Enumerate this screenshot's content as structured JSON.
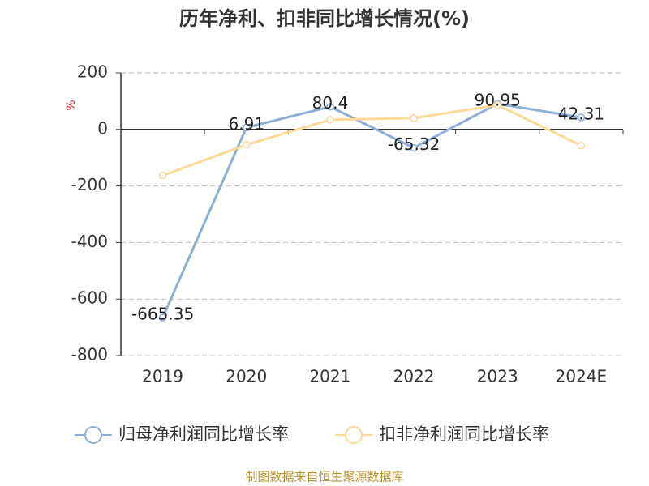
{
  "chart_data": {
    "type": "line",
    "title": "历年净利、扣非同比增长情况(%)",
    "y_label": "%",
    "categories": [
      "2019",
      "2020",
      "2021",
      "2022",
      "2023",
      "2024E"
    ],
    "series": [
      {
        "name": "归母净利润同比增长率",
        "color": "#8eaed8",
        "values": [
          -665.35,
          6.91,
          80.4,
          -65.32,
          90.95,
          42.31
        ],
        "data_labels": true
      },
      {
        "name": "扣非净利润同比增长率",
        "color": "#fcd899",
        "values": [
          -163,
          -54,
          34,
          40,
          86,
          -57
        ],
        "data_labels": false
      }
    ],
    "ylim": [
      -800,
      200
    ],
    "yticks": [
      -800,
      -600,
      -400,
      -200,
      0,
      200
    ],
    "grid": true,
    "source": "制图数据来自恒生聚源数据库"
  }
}
